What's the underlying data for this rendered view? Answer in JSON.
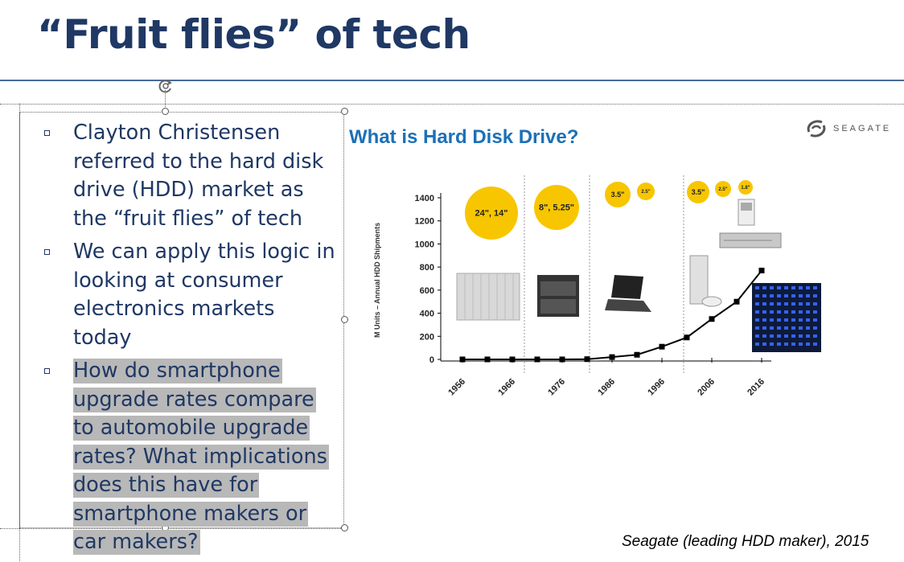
{
  "slide": {
    "title": "“Fruit flies” of tech",
    "bullets": [
      "Clayton Christensen referred to the hard disk drive (HDD) market as the “fruit flies” of tech",
      "We can apply this logic in looking at consumer electronics markets today",
      "How do smartphone upgrade rates compare to automobile upgrade rates? What implications does this have for smartphone makers or car makers?"
    ],
    "caption": "Seagate (leading HDD maker), 2015"
  },
  "figure": {
    "title": "What is Hard Disk Drive?",
    "logo_text": "SEAGATE",
    "size_bubbles": [
      "24\", 14\"",
      "8\", 5.25\"",
      "3.5\"",
      "2.5\"",
      "3.5\"",
      "2.5\"",
      "1.8\""
    ],
    "colors": {
      "bubble": "#f7c600",
      "title": "#1c70b6",
      "slide_title": "#1f3864"
    }
  },
  "chart_data": {
    "type": "line",
    "ylabel": "M Units – Annual HDD Shipments",
    "xlabel": "",
    "x_tick_labels": [
      "1956",
      "1966",
      "1976",
      "1986",
      "1996",
      "2006",
      "2016"
    ],
    "y_tick_labels": [
      "0",
      "200",
      "400",
      "600",
      "800",
      "1000",
      "1200",
      "1400"
    ],
    "ylim": [
      0,
      1400
    ],
    "grid": false,
    "series": [
      {
        "x": [
          1956,
          1961,
          1966,
          1971,
          1976,
          1981,
          1986,
          1991,
          1996,
          2001,
          2006,
          2011,
          2016
        ],
        "values": [
          0,
          0,
          0,
          0,
          0,
          2,
          20,
          40,
          110,
          190,
          350,
          500,
          770
        ]
      }
    ]
  }
}
